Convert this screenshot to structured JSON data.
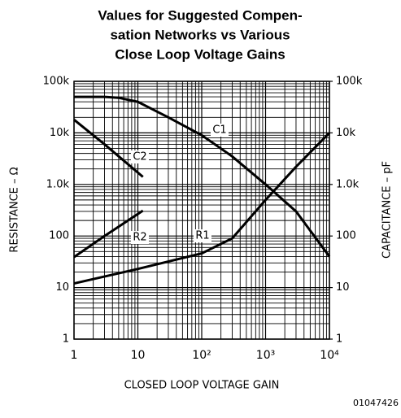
{
  "chart_data": {
    "type": "line",
    "title": [
      "Values for Suggested Compen-",
      "sation Networks vs Various",
      "Close Loop Voltage Gains"
    ],
    "xlabel": "CLOSED LOOP VOLTAGE GAIN",
    "ylabel": "RESISTANCE – Ω",
    "y2label": "CAPACITANCE – pF",
    "annotation": "01047426",
    "xscale": "log",
    "yscale": "log",
    "xlim": [
      1,
      10000
    ],
    "ylim": [
      1,
      100000
    ],
    "y2lim": [
      1,
      100000
    ],
    "xticks": [
      1,
      10,
      {
        "value": 100,
        "label": "10²"
      },
      {
        "value": 1000,
        "label": "10³"
      },
      {
        "value": 10000,
        "label": "10⁴"
      }
    ],
    "yticks": [
      1,
      10,
      100,
      {
        "value": 1000,
        "label": "1.0k"
      },
      {
        "value": 10000,
        "label": "10k"
      },
      {
        "value": 100000,
        "label": "100k"
      }
    ],
    "y2ticks": [
      1,
      10,
      100,
      {
        "value": 1000,
        "label": "1.0k"
      },
      {
        "value": 10000,
        "label": "10k"
      },
      {
        "value": 100000,
        "label": "100k"
      }
    ],
    "xminor_ticks": [
      2,
      3,
      4,
      5,
      6,
      7,
      8,
      9,
      20,
      30,
      40,
      50,
      60,
      70,
      80,
      90,
      200,
      300,
      400,
      500,
      600,
      700,
      800,
      900,
      2000,
      3000,
      4000,
      5000,
      6000,
      7000,
      8000,
      9000
    ],
    "yminor_ticks": [
      2,
      3,
      4,
      5,
      6,
      7,
      8,
      9,
      20,
      30,
      40,
      50,
      60,
      70,
      80,
      90,
      200,
      300,
      400,
      500,
      600,
      700,
      800,
      900,
      2000,
      3000,
      4000,
      5000,
      6000,
      7000,
      8000,
      9000,
      20000,
      30000,
      40000,
      50000,
      60000,
      70000,
      80000,
      90000
    ],
    "grid": true,
    "color": "#000000",
    "series": [
      {
        "name": "C1",
        "axis": "y2",
        "color": "#000000",
        "x": [
          1,
          3,
          5,
          10,
          30,
          100,
          300,
          1000,
          3000,
          10000
        ],
        "values": [
          50000,
          50000,
          48000,
          40000,
          20000,
          9000,
          3500,
          1000,
          300,
          40
        ]
      },
      {
        "name": "C2",
        "axis": "y2",
        "color": "#000000",
        "x": [
          1,
          3,
          12
        ],
        "values": [
          18000,
          6000,
          1400
        ]
      },
      {
        "name": "R1",
        "color": "#000000",
        "x": [
          1,
          10,
          100,
          300,
          1000,
          3000,
          10000
        ],
        "values": [
          12,
          23,
          46,
          90,
          500,
          2200,
          10000
        ]
      },
      {
        "name": "R2",
        "color": "#000000",
        "x": [
          1,
          3,
          12
        ],
        "values": [
          39,
          100,
          310
        ]
      }
    ]
  }
}
